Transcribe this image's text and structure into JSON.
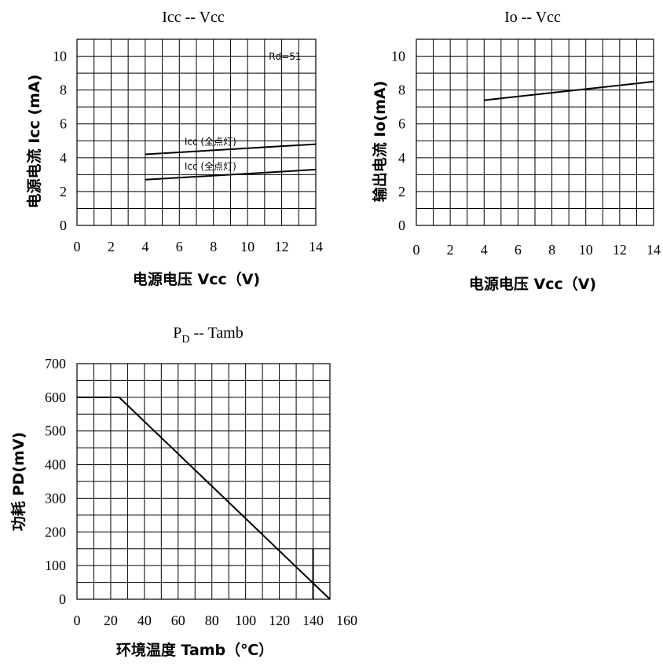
{
  "chart_data": [
    {
      "id": "icc",
      "type": "line",
      "title": "Icc -- Vcc",
      "xlabel": "电源电压 Vcc（V)",
      "ylabel": "电源电流 Icc (mA)",
      "xlim": [
        0,
        14
      ],
      "ylim": [
        0,
        11
      ],
      "x_ticks": [
        0,
        2,
        4,
        6,
        8,
        10,
        12,
        14
      ],
      "y_ticks": [
        0,
        2,
        4,
        6,
        8,
        10
      ],
      "grid": true,
      "series": [
        {
          "name": "Icc (全点灯)",
          "x": [
            4,
            14
          ],
          "y": [
            4.2,
            4.8
          ]
        },
        {
          "name": "Icc (全点灯)",
          "x": [
            4,
            14
          ],
          "y": [
            2.7,
            3.3
          ]
        }
      ],
      "annotations": [
        {
          "text": "Rd=51",
          "x": 12.2,
          "y": 9.8
        }
      ]
    },
    {
      "id": "io",
      "type": "line",
      "title": "Io -- Vcc",
      "xlabel": "电源电压 Vcc（V)",
      "ylabel": "输出电流 Io(mA)",
      "xlim": [
        0,
        14
      ],
      "ylim": [
        0,
        11
      ],
      "x_ticks": [
        0,
        2,
        4,
        6,
        8,
        10,
        12,
        14
      ],
      "y_ticks": [
        0,
        2,
        4,
        6,
        8,
        10
      ],
      "grid": true,
      "series": [
        {
          "name": "",
          "x": [
            4,
            14
          ],
          "y": [
            7.4,
            8.5
          ]
        }
      ],
      "annotations": []
    },
    {
      "id": "pd",
      "type": "line",
      "title": "PD -- Tamb",
      "title_main": "P",
      "title_sub": "D",
      "title_rest": "  --  Tamb",
      "xlabel": "环境温度 Tamb（℃）",
      "ylabel": "功耗 PD(mV)",
      "xlim": [
        0,
        150
      ],
      "ylim": [
        0,
        700
      ],
      "x_ticks": [
        0,
        20,
        40,
        60,
        80,
        100,
        120,
        140,
        160
      ],
      "y_ticks": [
        0,
        100,
        200,
        300,
        400,
        500,
        600,
        700
      ],
      "grid": true,
      "series": [
        {
          "name": "",
          "x": [
            0,
            25,
            150
          ],
          "y": [
            600,
            600,
            0
          ]
        }
      ],
      "markers": [
        {
          "x": 140,
          "y0": 0,
          "y1": 150
        }
      ]
    }
  ]
}
